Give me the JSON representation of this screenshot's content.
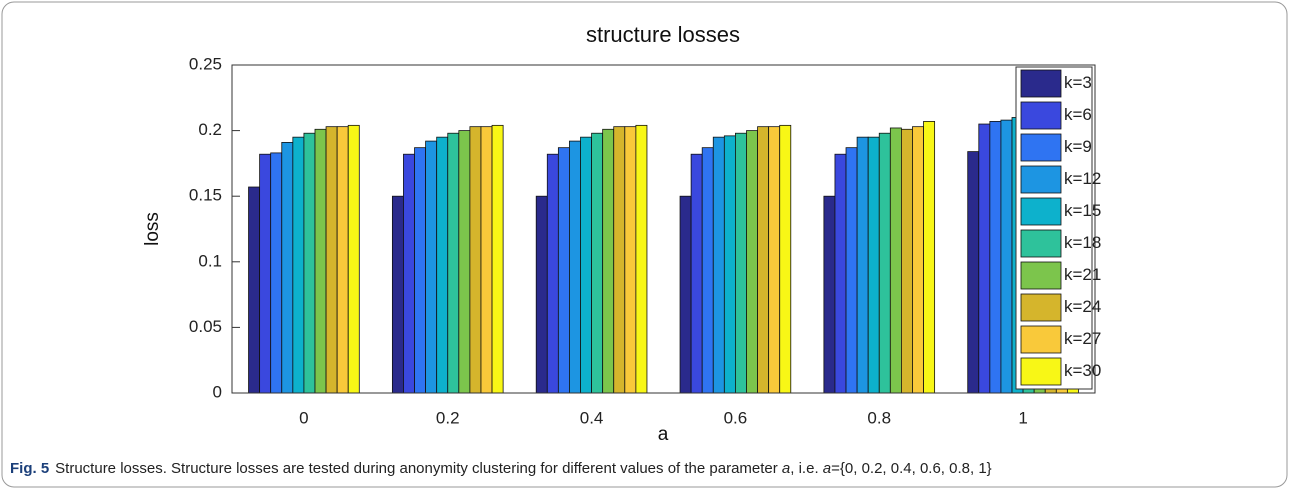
{
  "chart_data": {
    "type": "bar",
    "title": "structure losses",
    "xlabel": "a",
    "ylabel": "loss",
    "categories": [
      "0",
      "0.2",
      "0.4",
      "0.6",
      "0.8",
      "1"
    ],
    "series": [
      {
        "name": "k=3",
        "color": "#2a2a8c",
        "values": [
          0.157,
          0.15,
          0.15,
          0.15,
          0.15,
          0.184
        ]
      },
      {
        "name": "k=6",
        "color": "#3a48de",
        "values": [
          0.182,
          0.182,
          0.182,
          0.182,
          0.182,
          0.205
        ]
      },
      {
        "name": "k=9",
        "color": "#2f74f2",
        "values": [
          0.183,
          0.187,
          0.187,
          0.187,
          0.187,
          0.207
        ]
      },
      {
        "name": "k=12",
        "color": "#1d95e2",
        "values": [
          0.191,
          0.192,
          0.192,
          0.195,
          0.195,
          0.208
        ]
      },
      {
        "name": "k=15",
        "color": "#0db1cc",
        "values": [
          0.195,
          0.195,
          0.195,
          0.196,
          0.195,
          0.21
        ]
      },
      {
        "name": "k=18",
        "color": "#2ec29b",
        "values": [
          0.198,
          0.198,
          0.198,
          0.198,
          0.198,
          0.21
        ]
      },
      {
        "name": "k=21",
        "color": "#7cc54c",
        "values": [
          0.201,
          0.2,
          0.201,
          0.2,
          0.202,
          0.21
        ]
      },
      {
        "name": "k=24",
        "color": "#d5b52c",
        "values": [
          0.203,
          0.203,
          0.203,
          0.203,
          0.201,
          0.21
        ]
      },
      {
        "name": "k=27",
        "color": "#f9c93a",
        "values": [
          0.203,
          0.203,
          0.203,
          0.203,
          0.203,
          0.21
        ]
      },
      {
        "name": "k=30",
        "color": "#f8f716",
        "values": [
          0.204,
          0.204,
          0.204,
          0.204,
          0.207,
          0.21
        ]
      }
    ],
    "ylim": [
      0,
      0.25
    ],
    "yticks": [
      0,
      0.05,
      0.1,
      0.15,
      0.2,
      0.25
    ],
    "grid": false,
    "legend": "upper right"
  },
  "caption": {
    "label": "Fig. 5",
    "parts": [
      "Structure losses. Structure losses are tested during anonymity clustering for different values of the parameter ",
      "a",
      ", i.e. ",
      "a",
      "={0, 0.2, 0.4, 0.6, 0.8, 1}"
    ]
  }
}
